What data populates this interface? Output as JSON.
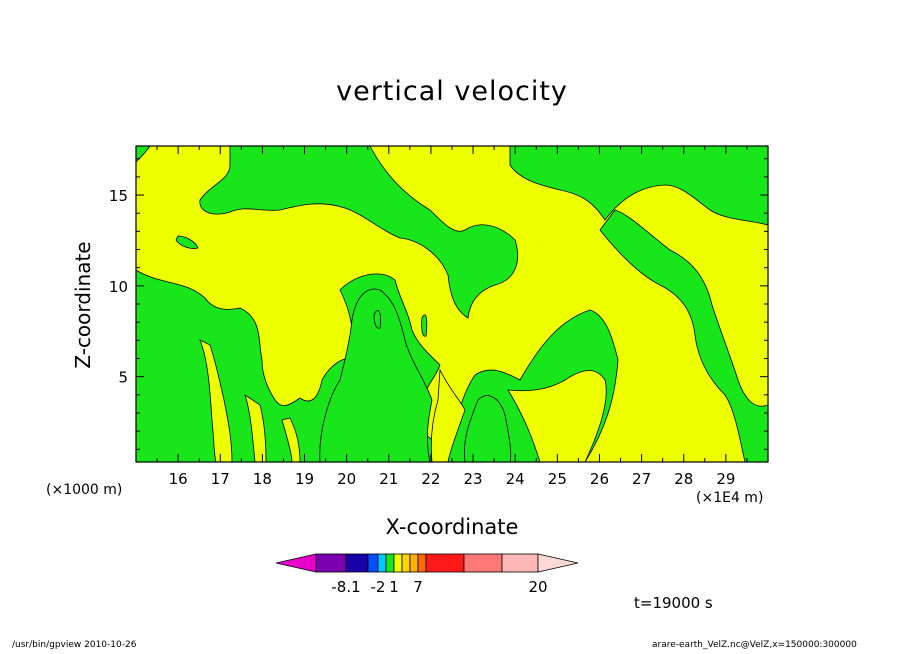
{
  "title": "vertical velocity",
  "xlabel": "X-coordinate",
  "ylabel": "Z-coordinate",
  "x_unit": "(×1E4 m)",
  "y_unit": "(×1000 m)",
  "time_label": "t=19000 s",
  "footer_left": "/usr/bin/gpview  2010-10-26",
  "footer_right": "arare-earth_VelZ.nc@VelZ,x=150000:300000",
  "colors": {
    "yellow": "#eeff00",
    "green": "#18e61a"
  },
  "chart_data": {
    "type": "heatmap",
    "title": "vertical velocity",
    "xlabel": "X-coordinate",
    "ylabel": "Z-coordinate",
    "xlim": [
      15,
      30
    ],
    "ylim": [
      0.3,
      17.7
    ],
    "x_ticks": [
      "16",
      "17",
      "18",
      "19",
      "20",
      "21",
      "22",
      "23",
      "24",
      "25",
      "26",
      "27",
      "28",
      "29"
    ],
    "y_ticks": [
      "5",
      "10",
      "15"
    ],
    "colorbar": {
      "colors": [
        "#e600c8",
        "#7a00b0",
        "#1a00a8",
        "#0050ff",
        "#00c8ff",
        "#18e61a",
        "#eeff00",
        "#ffd200",
        "#ffb000",
        "#ff6a00",
        "#ff1a1a",
        "#ff7878",
        "#ffb8b8",
        "#ffd8d8"
      ],
      "labels": [
        "-8.1",
        "-2",
        "1",
        "7",
        "20"
      ],
      "label_boxes": [
        1,
        3,
        5,
        8,
        12
      ]
    },
    "filled_regions_visible": [
      "#18e61a",
      "#eeff00"
    ]
  }
}
